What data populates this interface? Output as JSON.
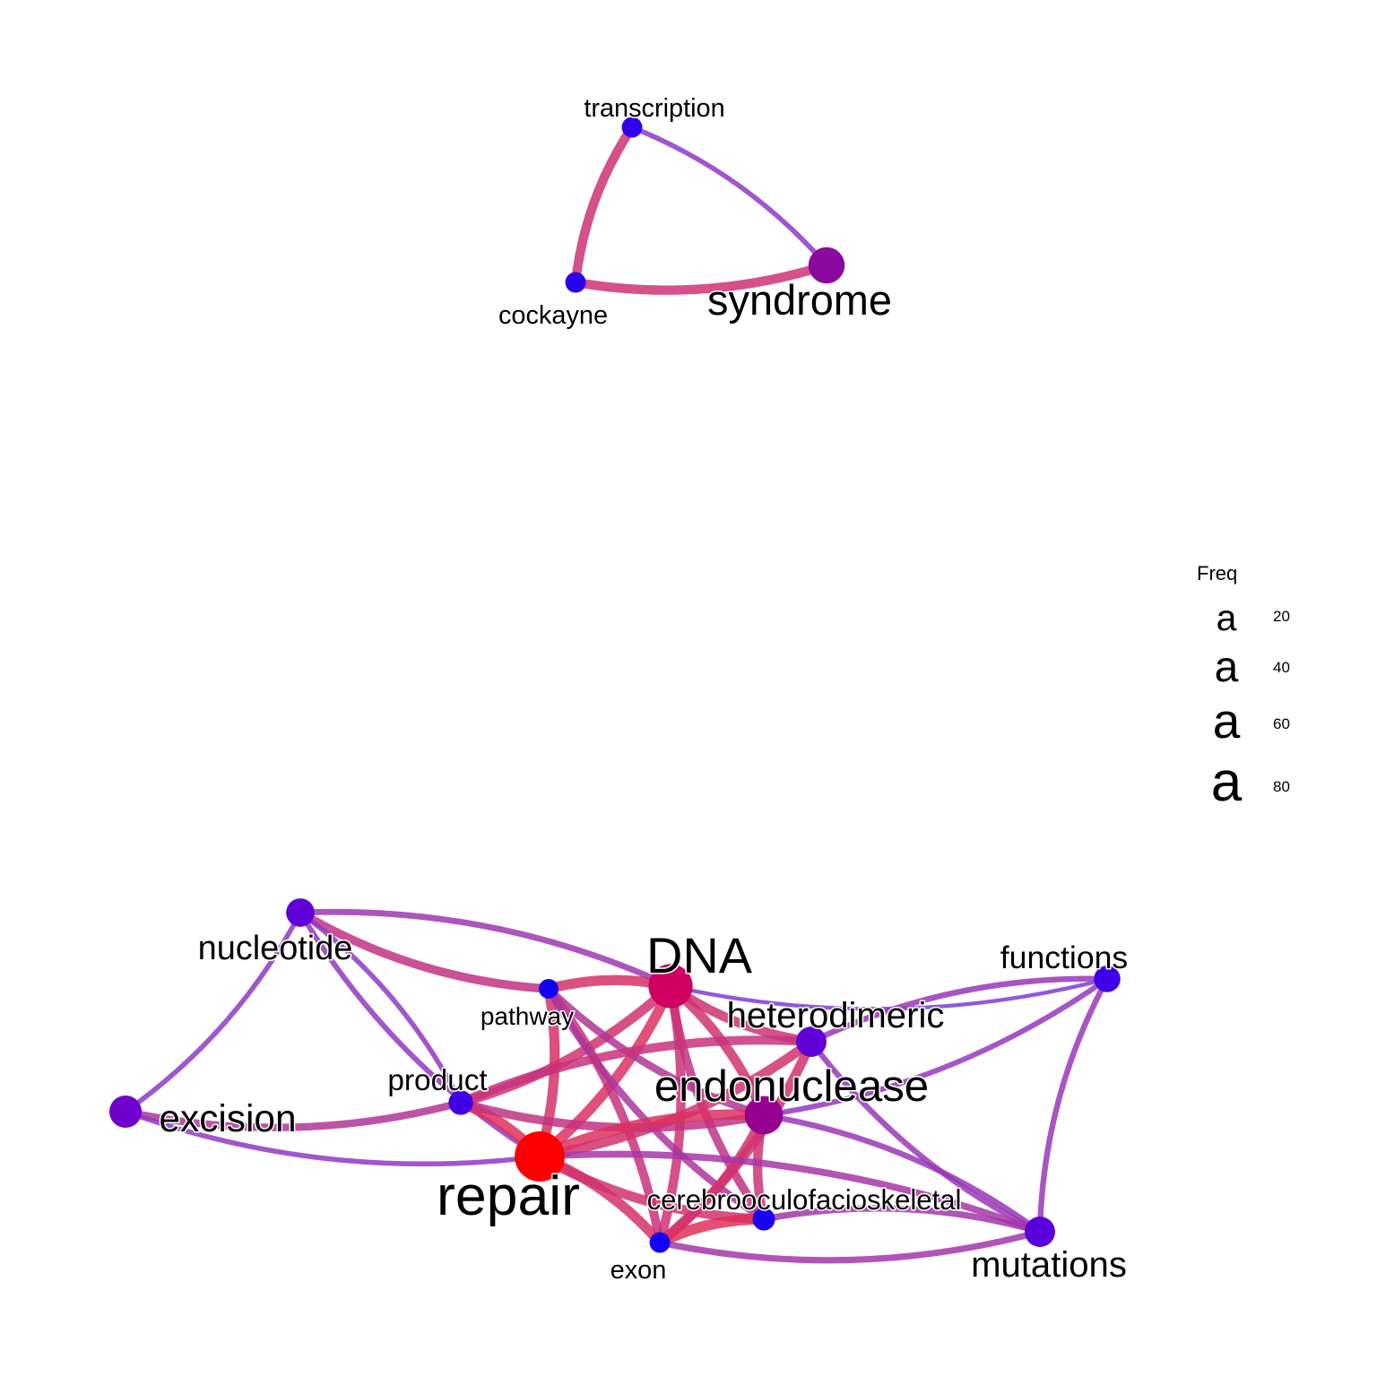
{
  "legend": {
    "title": "Freq",
    "glyph": "a",
    "entries": [
      {
        "label": "20",
        "value": 20
      },
      {
        "label": "40",
        "value": 40
      },
      {
        "label": "60",
        "value": 60
      },
      {
        "label": "80",
        "value": 80
      }
    ]
  },
  "colors": {
    "low": "#0000ff",
    "high": "#ff0000",
    "edge_strong": "#e0305a",
    "edge_weak": "#7a3ae0"
  },
  "nodes": [
    {
      "id": "transcription",
      "label": "transcription",
      "freq": 20,
      "color": "#3000ee"
    },
    {
      "id": "syndrome",
      "label": "syndrome",
      "freq": 60,
      "color": "#8a0aa0"
    },
    {
      "id": "cockayne",
      "label": "cockayne",
      "freq": 20,
      "color": "#2a00f0"
    },
    {
      "id": "nucleotide",
      "label": "nucleotide",
      "freq": 40,
      "color": "#6000d8"
    },
    {
      "id": "dna",
      "label": "DNA",
      "freq": 80,
      "color": "#d00060"
    },
    {
      "id": "functions",
      "label": "functions",
      "freq": 35,
      "color": "#4000e6"
    },
    {
      "id": "pathway",
      "label": "pathway",
      "freq": 18,
      "color": "#1000fa"
    },
    {
      "id": "heterodimeric",
      "label": "heterodimeric",
      "freq": 45,
      "color": "#6000d6"
    },
    {
      "id": "product",
      "label": "product",
      "freq": 30,
      "color": "#4000e6"
    },
    {
      "id": "endonuclease",
      "label": "endonuclease",
      "freq": 65,
      "color": "#960090"
    },
    {
      "id": "excision",
      "label": "excision",
      "freq": 50,
      "color": "#7000cc"
    },
    {
      "id": "repair",
      "label": "repair",
      "freq": 95,
      "color": "#ff0000"
    },
    {
      "id": "cerebrooculofacioskeletal",
      "label": "cerebrooculofacioskeletal",
      "freq": 25,
      "color": "#1800f4"
    },
    {
      "id": "exon",
      "label": "exon",
      "freq": 20,
      "color": "#1400f6"
    },
    {
      "id": "mutations",
      "label": "mutations",
      "freq": 45,
      "color": "#5a00da"
    }
  ],
  "edges": [
    {
      "source": "transcription",
      "target": "cockayne",
      "strength": 0.8
    },
    {
      "source": "transcription",
      "target": "syndrome",
      "strength": 0.2
    },
    {
      "source": "cockayne",
      "target": "syndrome",
      "strength": 0.8
    },
    {
      "source": "nucleotide",
      "target": "dna",
      "strength": 0.35
    },
    {
      "source": "nucleotide",
      "target": "pathway",
      "strength": 0.7
    },
    {
      "source": "nucleotide",
      "target": "excision",
      "strength": 0.2
    },
    {
      "source": "nucleotide",
      "target": "repair",
      "strength": 0.25
    },
    {
      "source": "nucleotide",
      "target": "product",
      "strength": 0.2
    },
    {
      "source": "dna",
      "target": "functions",
      "strength": 0.05
    },
    {
      "source": "dna",
      "target": "repair",
      "strength": 0.95
    },
    {
      "source": "dna",
      "target": "pathway",
      "strength": 0.9
    },
    {
      "source": "dna",
      "target": "endonuclease",
      "strength": 0.85
    },
    {
      "source": "dna",
      "target": "heterodimeric",
      "strength": 0.8
    },
    {
      "source": "dna",
      "target": "product",
      "strength": 0.85
    },
    {
      "source": "dna",
      "target": "cerebrooculofacioskeletal",
      "strength": 0.7
    },
    {
      "source": "dna",
      "target": "exon",
      "strength": 0.8
    },
    {
      "source": "functions",
      "target": "heterodimeric",
      "strength": 0.3
    },
    {
      "source": "functions",
      "target": "endonuclease",
      "strength": 0.25
    },
    {
      "source": "functions",
      "target": "mutations",
      "strength": 0.3
    },
    {
      "source": "pathway",
      "target": "repair",
      "strength": 0.9
    },
    {
      "source": "pathway",
      "target": "endonuclease",
      "strength": 0.55
    },
    {
      "source": "pathway",
      "target": "exon",
      "strength": 0.75
    },
    {
      "source": "pathway",
      "target": "cerebrooculofacioskeletal",
      "strength": 0.5
    },
    {
      "source": "heterodimeric",
      "target": "repair",
      "strength": 0.85
    },
    {
      "source": "heterodimeric",
      "target": "product",
      "strength": 0.75
    },
    {
      "source": "heterodimeric",
      "target": "exon",
      "strength": 0.85
    },
    {
      "source": "heterodimeric",
      "target": "mutations",
      "strength": 0.3
    },
    {
      "source": "product",
      "target": "repair",
      "strength": 1.0
    },
    {
      "source": "product",
      "target": "endonuclease",
      "strength": 0.7
    },
    {
      "source": "product",
      "target": "excision",
      "strength": 0.55
    },
    {
      "source": "endonuclease",
      "target": "repair",
      "strength": 0.95
    },
    {
      "source": "endonuclease",
      "target": "exon",
      "strength": 0.85
    },
    {
      "source": "endonuclease",
      "target": "cerebrooculofacioskeletal",
      "strength": 0.8
    },
    {
      "source": "endonuclease",
      "target": "mutations",
      "strength": 0.3
    },
    {
      "source": "excision",
      "target": "repair",
      "strength": 0.2
    },
    {
      "source": "repair",
      "target": "exon",
      "strength": 0.9
    },
    {
      "source": "repair",
      "target": "cerebrooculofacioskeletal",
      "strength": 0.85
    },
    {
      "source": "repair",
      "target": "mutations",
      "strength": 0.45
    },
    {
      "source": "cerebrooculofacioskeletal",
      "target": "exon",
      "strength": 1.0
    },
    {
      "source": "cerebrooculofacioskeletal",
      "target": "mutations",
      "strength": 0.4
    },
    {
      "source": "exon",
      "target": "mutations",
      "strength": 0.4
    }
  ]
}
